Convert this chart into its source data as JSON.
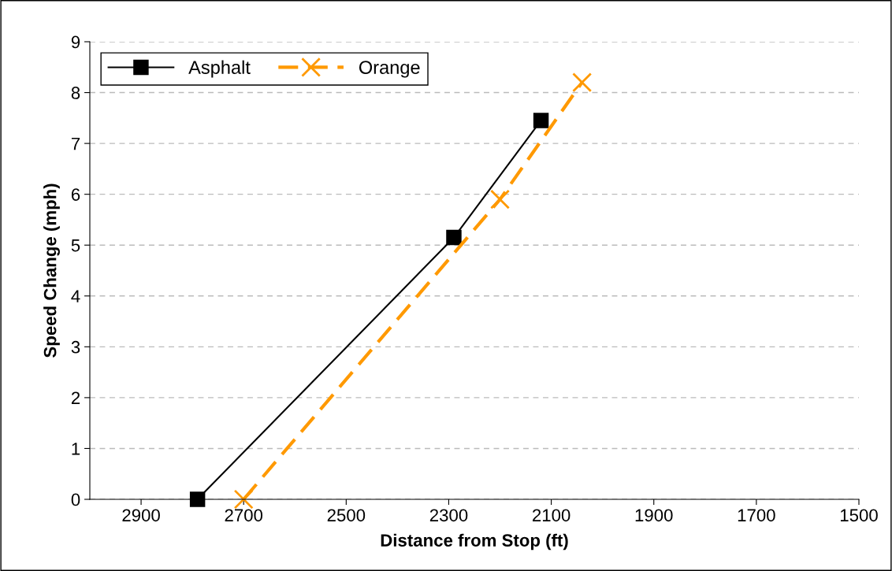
{
  "chart_data": {
    "type": "line",
    "xlabel": "Distance from Stop (ft)",
    "ylabel": "Speed Change (mph)",
    "xlim": [
      3000,
      1500
    ],
    "xticks": [
      2900,
      2700,
      2500,
      2300,
      2100,
      1900,
      1700,
      1500
    ],
    "ylim": [
      0,
      9
    ],
    "yticks": [
      0,
      1,
      2,
      3,
      4,
      5,
      6,
      7,
      8,
      9
    ],
    "grid": "y",
    "legend": "top left",
    "series": [
      {
        "name": "Asphalt",
        "color": "#000000",
        "marker": "square",
        "line_style": "solid",
        "x": [
          2790,
          2290,
          2120
        ],
        "values": [
          0,
          5.15,
          7.45
        ]
      },
      {
        "name": "Orange",
        "color": "#ff9900",
        "marker": "cross",
        "line_style": "dashed",
        "x": [
          2700,
          2200,
          2040
        ],
        "values": [
          0,
          5.9,
          8.2
        ]
      }
    ]
  }
}
